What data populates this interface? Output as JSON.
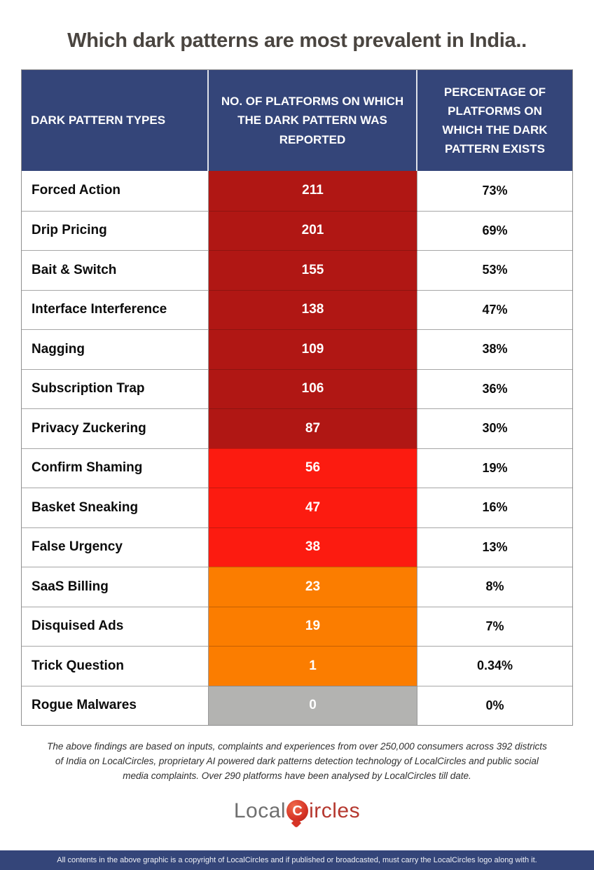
{
  "title": "Which dark patterns are most prevalent in India..",
  "colors": {
    "header-blue": "#344579",
    "bar-blue": "#344579",
    "dark-red": "#b01714",
    "bright-red": "#fc1b10",
    "orange": "#fb7d00",
    "gray": "#b3b3b1",
    "title-text": "#4a4540",
    "logo-gray": "#6f6f6f",
    "logo-red": "#b5382f",
    "pin-red": "#d63426"
  },
  "table": {
    "headers": [
      "DARK PATTERN TYPES",
      "NO. OF PLATFORMS ON WHICH THE DARK PATTERN WAS REPORTED",
      "PERCENTAGE OF PLATFORMS ON WHICH THE DARK PATTERN EXISTS"
    ],
    "rows": [
      {
        "type": "Forced Action",
        "platforms": "211",
        "percentage": "73%",
        "tier": "dark-red"
      },
      {
        "type": "Drip Pricing",
        "platforms": "201",
        "percentage": "69%",
        "tier": "dark-red"
      },
      {
        "type": "Bait & Switch",
        "platforms": "155",
        "percentage": "53%",
        "tier": "dark-red"
      },
      {
        "type": "Interface Interference",
        "platforms": "138",
        "percentage": "47%",
        "tier": "dark-red"
      },
      {
        "type": "Nagging",
        "platforms": "109",
        "percentage": "38%",
        "tier": "dark-red"
      },
      {
        "type": "Subscription Trap",
        "platforms": "106",
        "percentage": "36%",
        "tier": "dark-red"
      },
      {
        "type": "Privacy Zuckering",
        "platforms": "87",
        "percentage": "30%",
        "tier": "dark-red"
      },
      {
        "type": "Confirm Shaming",
        "platforms": "56",
        "percentage": "19%",
        "tier": "bright-red"
      },
      {
        "type": "Basket Sneaking",
        "platforms": "47",
        "percentage": "16%",
        "tier": "bright-red"
      },
      {
        "type": "False Urgency",
        "platforms": "38",
        "percentage": "13%",
        "tier": "bright-red"
      },
      {
        "type": "SaaS Billing",
        "platforms": "23",
        "percentage": "8%",
        "tier": "orange"
      },
      {
        "type": "Disquised Ads",
        "platforms": "19",
        "percentage": "7%",
        "tier": "orange"
      },
      {
        "type": "Trick Question",
        "platforms": "1",
        "percentage": "0.34%",
        "tier": "orange"
      },
      {
        "type": "Rogue Malwares",
        "platforms": "0",
        "percentage": "0%",
        "tier": "gray"
      }
    ]
  },
  "chart_data": {
    "type": "table",
    "title": "Which dark patterns are most prevalent in India..",
    "columns": [
      "DARK PATTERN TYPES",
      "NO. OF PLATFORMS ON WHICH THE DARK PATTERN WAS REPORTED",
      "PERCENTAGE OF PLATFORMS ON WHICH THE DARK PATTERN EXISTS"
    ],
    "categories": [
      "Forced Action",
      "Drip Pricing",
      "Bait & Switch",
      "Interface Interference",
      "Nagging",
      "Subscription Trap",
      "Privacy Zuckering",
      "Confirm Shaming",
      "Basket Sneaking",
      "False Urgency",
      "SaaS Billing",
      "Disquised Ads",
      "Trick Question",
      "Rogue Malwares"
    ],
    "series": [
      {
        "name": "No. of platforms reported",
        "values": [
          211,
          201,
          155,
          138,
          109,
          106,
          87,
          56,
          47,
          38,
          23,
          19,
          1,
          0
        ]
      },
      {
        "name": "Percentage of platforms",
        "values": [
          73,
          69,
          53,
          47,
          38,
          36,
          30,
          19,
          16,
          13,
          8,
          7,
          0.34,
          0
        ]
      }
    ]
  },
  "footnote": "The above findings are based on inputs, complaints and experiences from over 250,000 consumers across 392 districts of India on LocalCircles, proprietary AI powered dark patterns detection technology of LocalCircles and public social media complaints. Over 290 platforms have been analysed by LocalCircles till date.",
  "logo": {
    "part1": "Local",
    "part2": "ircles",
    "icon_letter": "C"
  },
  "copyright": "All contents in the above graphic is a copyright of LocalCircles and if published or broadcasted, must carry the LocalCircles logo along with it."
}
